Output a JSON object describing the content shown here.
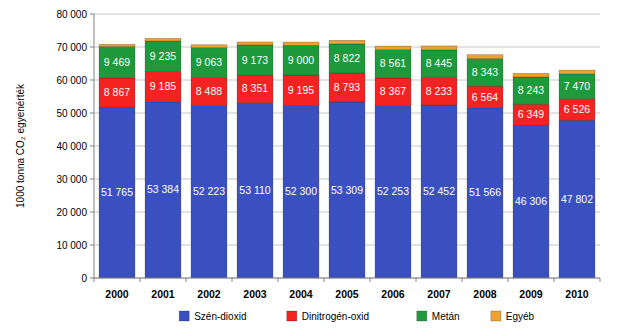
{
  "chart_data": {
    "type": "bar",
    "stacked": true,
    "grid": true,
    "data_labels": true,
    "legend": "bottom",
    "y_label": "1000 tonna CO₂ egyenérték",
    "categories": [
      "2000",
      "2001",
      "2002",
      "2003",
      "2004",
      "2005",
      "2006",
      "2007",
      "2008",
      "2009",
      "2010"
    ],
    "ylim": [
      0,
      80000
    ],
    "yticks": [
      0,
      {
        "value": 10000,
        "label": "10 000"
      },
      {
        "value": 20000,
        "label": "20 000"
      },
      {
        "value": 30000,
        "label": "30 000"
      },
      {
        "value": 40000,
        "label": "40 000"
      },
      {
        "value": 50000,
        "label": "50 000"
      },
      {
        "value": 60000,
        "label": "60 000"
      },
      {
        "value": 70000,
        "label": "70 000"
      },
      {
        "value": 80000,
        "label": "80 000"
      }
    ],
    "series": [
      {
        "name": "Szén-dioxid",
        "color": "#3a50c0",
        "values": [
          51765,
          53384,
          52223,
          53110,
          52300,
          53309,
          52253,
          52452,
          51566,
          46306,
          47802
        ],
        "value_labels": [
          "51 765",
          "53 384",
          "52 223",
          "53 110",
          "52 300",
          "53 309",
          "52 253",
          "52 452",
          "51 566",
          "46 306",
          "47 802"
        ]
      },
      {
        "name": "Dinitrogén-oxid",
        "color": "#f52222",
        "values": [
          8867,
          9185,
          8488,
          8351,
          9195,
          8793,
          8367,
          8233,
          6564,
          6349,
          6526
        ],
        "value_labels": [
          "8 867",
          "9 185",
          "8 488",
          "8 351",
          "9 195",
          "8 793",
          "8 367",
          "8 233",
          "6 564",
          "6 349",
          "6 526"
        ]
      },
      {
        "name": "Metán",
        "color": "#1e9a3c",
        "values": [
          9469,
          9235,
          9063,
          9173,
          9000,
          8822,
          8561,
          8445,
          8343,
          8243,
          7470
        ],
        "value_labels": [
          "9 469",
          "9 235",
          "9 063",
          "9 173",
          "9 000",
          "8 822",
          "8 561",
          "8 445",
          "8 343",
          "8 243",
          "7 470"
        ]
      },
      {
        "name": "Egyéb",
        "color": "#f0a030",
        "data_labels": false,
        "values": [
          700,
          800,
          900,
          900,
          1000,
          1100,
          1100,
          1200,
          1200,
          1100,
          1200
        ]
      }
    ]
  }
}
